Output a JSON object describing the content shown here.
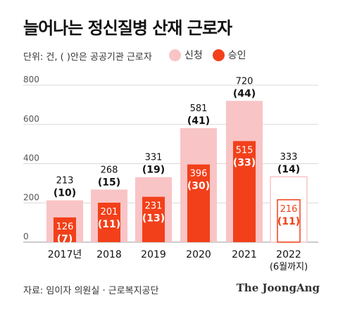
{
  "title": "늘어나는 정신질병 산재 근로자",
  "subtitle": "단위: 건, ( )안은 공공기관 근로자",
  "legend": [
    {
      "label": "신청",
      "color": "#f9c4c5"
    },
    {
      "label": "승인",
      "color": "#f2401a"
    }
  ],
  "source": "자료: 임이자 의원실 · 근로복지공단",
  "brand": "The JoongAng",
  "chart_data": {
    "type": "bar",
    "categories": [
      "2017년",
      "2018",
      "2019",
      "2020",
      "2021",
      "2022"
    ],
    "category_sublabels": [
      "",
      "",
      "",
      "",
      "",
      "(6월까지)"
    ],
    "y_ticks": [
      0,
      200,
      400,
      600,
      800
    ],
    "ylim": [
      0,
      800
    ],
    "grid": true,
    "legend_position": "top",
    "series": [
      {
        "name": "신청",
        "color": "#f9c4c5",
        "values": [
          213,
          268,
          331,
          581,
          720,
          333
        ],
        "public_values": [
          "(10)",
          "(15)",
          "(19)",
          "(41)",
          "(44)",
          "(14)"
        ]
      },
      {
        "name": "승인",
        "color": "#f2401a",
        "values": [
          126,
          201,
          231,
          396,
          515,
          216
        ],
        "public_values": [
          "(7)",
          "(11)",
          "(13)",
          "(30)",
          "(33)",
          "(11)"
        ]
      }
    ],
    "partial_year_index": 5
  }
}
